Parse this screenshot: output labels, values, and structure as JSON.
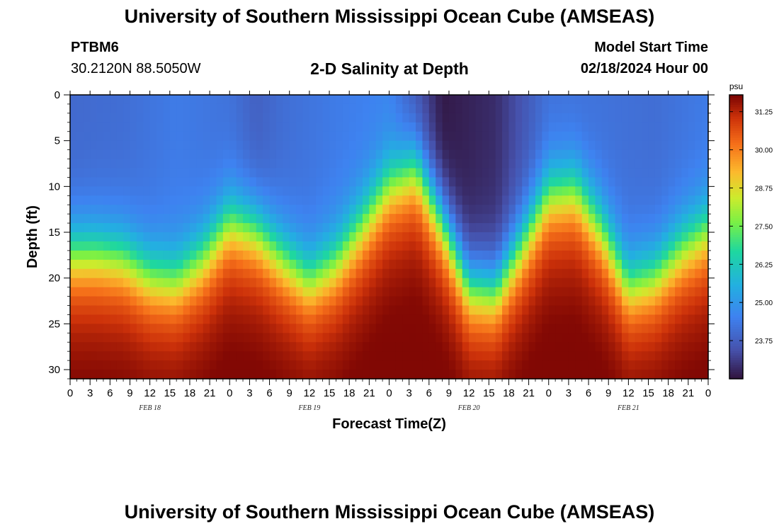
{
  "header": {
    "title": "University of Southern Mississippi Ocean Cube (AMSEAS)",
    "station_id": "PTBM6",
    "coordinates": "30.2120N  88.5050W",
    "plot_title": "2-D Salinity at Depth",
    "start_label": "Model Start Time",
    "start_value": "02/18/2024 Hour 00"
  },
  "footer": {
    "title": "University of Southern Mississippi Ocean Cube (AMSEAS)"
  },
  "chart_data": {
    "type": "heatmap",
    "title": "2-D Salinity at Depth",
    "xlabel": "Forecast Time(Z)",
    "ylabel": "Depth (ft)",
    "xlim": [
      0,
      96
    ],
    "ylim": [
      0,
      31
    ],
    "x_tick_hours": [
      0,
      3,
      6,
      9,
      12,
      15,
      18,
      21,
      24,
      27,
      30,
      33,
      36,
      39,
      42,
      45,
      48,
      51,
      54,
      57,
      60,
      63,
      66,
      69,
      72,
      75,
      78,
      81,
      84,
      87,
      90,
      93,
      96
    ],
    "x_tick_labels": [
      "0",
      "3",
      "6",
      "9",
      "12",
      "15",
      "18",
      "21",
      "0",
      "3",
      "6",
      "9",
      "12",
      "15",
      "18",
      "21",
      "0",
      "3",
      "6",
      "9",
      "12",
      "15",
      "18",
      "21",
      "0",
      "3",
      "6",
      "9",
      "12",
      "15",
      "18",
      "21",
      "0"
    ],
    "date_labels": [
      {
        "hour": 12,
        "label": "FEB 18"
      },
      {
        "hour": 36,
        "label": "FEB 19"
      },
      {
        "hour": 60,
        "label": "FEB 20"
      },
      {
        "hour": 84,
        "label": "FEB 21"
      }
    ],
    "y_ticks": [
      0,
      5,
      10,
      15,
      20,
      25,
      30
    ],
    "y_tick_labels": [
      "0",
      "5",
      "10",
      "15",
      "20",
      "25",
      "30"
    ],
    "colorbar": {
      "unit": "psu",
      "min": 22.5,
      "max": 31.8,
      "ticks": [
        31.25,
        30.0,
        28.75,
        27.5,
        26.25,
        25.0,
        23.75
      ],
      "tick_labels": [
        "31.25",
        "30.00",
        "28.75",
        "27.50",
        "26.25",
        "25.00",
        "23.75"
      ]
    },
    "halocline_depth_ft": {
      "hours": [
        0,
        4,
        8,
        12,
        16,
        20,
        24,
        28,
        32,
        36,
        40,
        44,
        48,
        52,
        56,
        60,
        64,
        68,
        72,
        76,
        80,
        84,
        88,
        92,
        96
      ],
      "values": [
        17.5,
        17.5,
        18.0,
        20.0,
        20.5,
        18.0,
        14.0,
        15.0,
        18.0,
        20.5,
        18.5,
        14.5,
        10.0,
        8.0,
        14.0,
        21.0,
        21.5,
        16.5,
        11.0,
        10.5,
        15.0,
        21.0,
        20.0,
        17.0,
        15.0
      ]
    },
    "surface_salinity_psu": {
      "hours": [
        0,
        8,
        16,
        24,
        28,
        32,
        40,
        48,
        56,
        64,
        72,
        80,
        88,
        96
      ],
      "values": [
        24.0,
        24.1,
        24.4,
        24.2,
        23.8,
        24.1,
        24.4,
        24.6,
        22.6,
        22.9,
        24.2,
        24.2,
        24.1,
        24.4
      ]
    },
    "bottom_salinity_psu": 31.4
  }
}
